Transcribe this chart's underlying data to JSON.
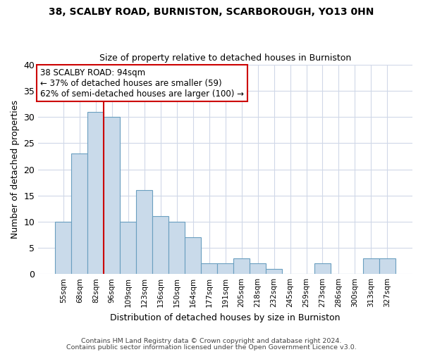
{
  "title1": "38, SCALBY ROAD, BURNISTON, SCARBOROUGH, YO13 0HN",
  "title2": "Size of property relative to detached houses in Burniston",
  "xlabel": "Distribution of detached houses by size in Burniston",
  "ylabel": "Number of detached properties",
  "categories": [
    "55sqm",
    "68sqm",
    "82sqm",
    "96sqm",
    "109sqm",
    "123sqm",
    "136sqm",
    "150sqm",
    "164sqm",
    "177sqm",
    "191sqm",
    "205sqm",
    "218sqm",
    "232sqm",
    "245sqm",
    "259sqm",
    "273sqm",
    "286sqm",
    "300sqm",
    "313sqm",
    "327sqm"
  ],
  "values": [
    10,
    23,
    31,
    30,
    10,
    16,
    11,
    10,
    7,
    2,
    2,
    3,
    2,
    1,
    0,
    0,
    2,
    0,
    0,
    3,
    3
  ],
  "bar_color": "#c9daea",
  "bar_edge_color": "#6a9fc0",
  "ylim": [
    0,
    40
  ],
  "yticks": [
    0,
    5,
    10,
    15,
    20,
    25,
    30,
    35,
    40
  ],
  "annotation_text_line1": "38 SCALBY ROAD: 94sqm",
  "annotation_text_line2": "← 37% of detached houses are smaller (59)",
  "annotation_text_line3": "62% of semi-detached houses are larger (100) →",
  "annotation_box_color": "#ffffff",
  "annotation_box_edge_color": "#cc0000",
  "vline_color": "#cc0000",
  "vline_x": 2.5,
  "footer1": "Contains HM Land Registry data © Crown copyright and database right 2024.",
  "footer2": "Contains public sector information licensed under the Open Government Licence v3.0.",
  "bg_color": "#ffffff",
  "plot_bg_color": "#ffffff",
  "grid_color": "#d0d8e8"
}
